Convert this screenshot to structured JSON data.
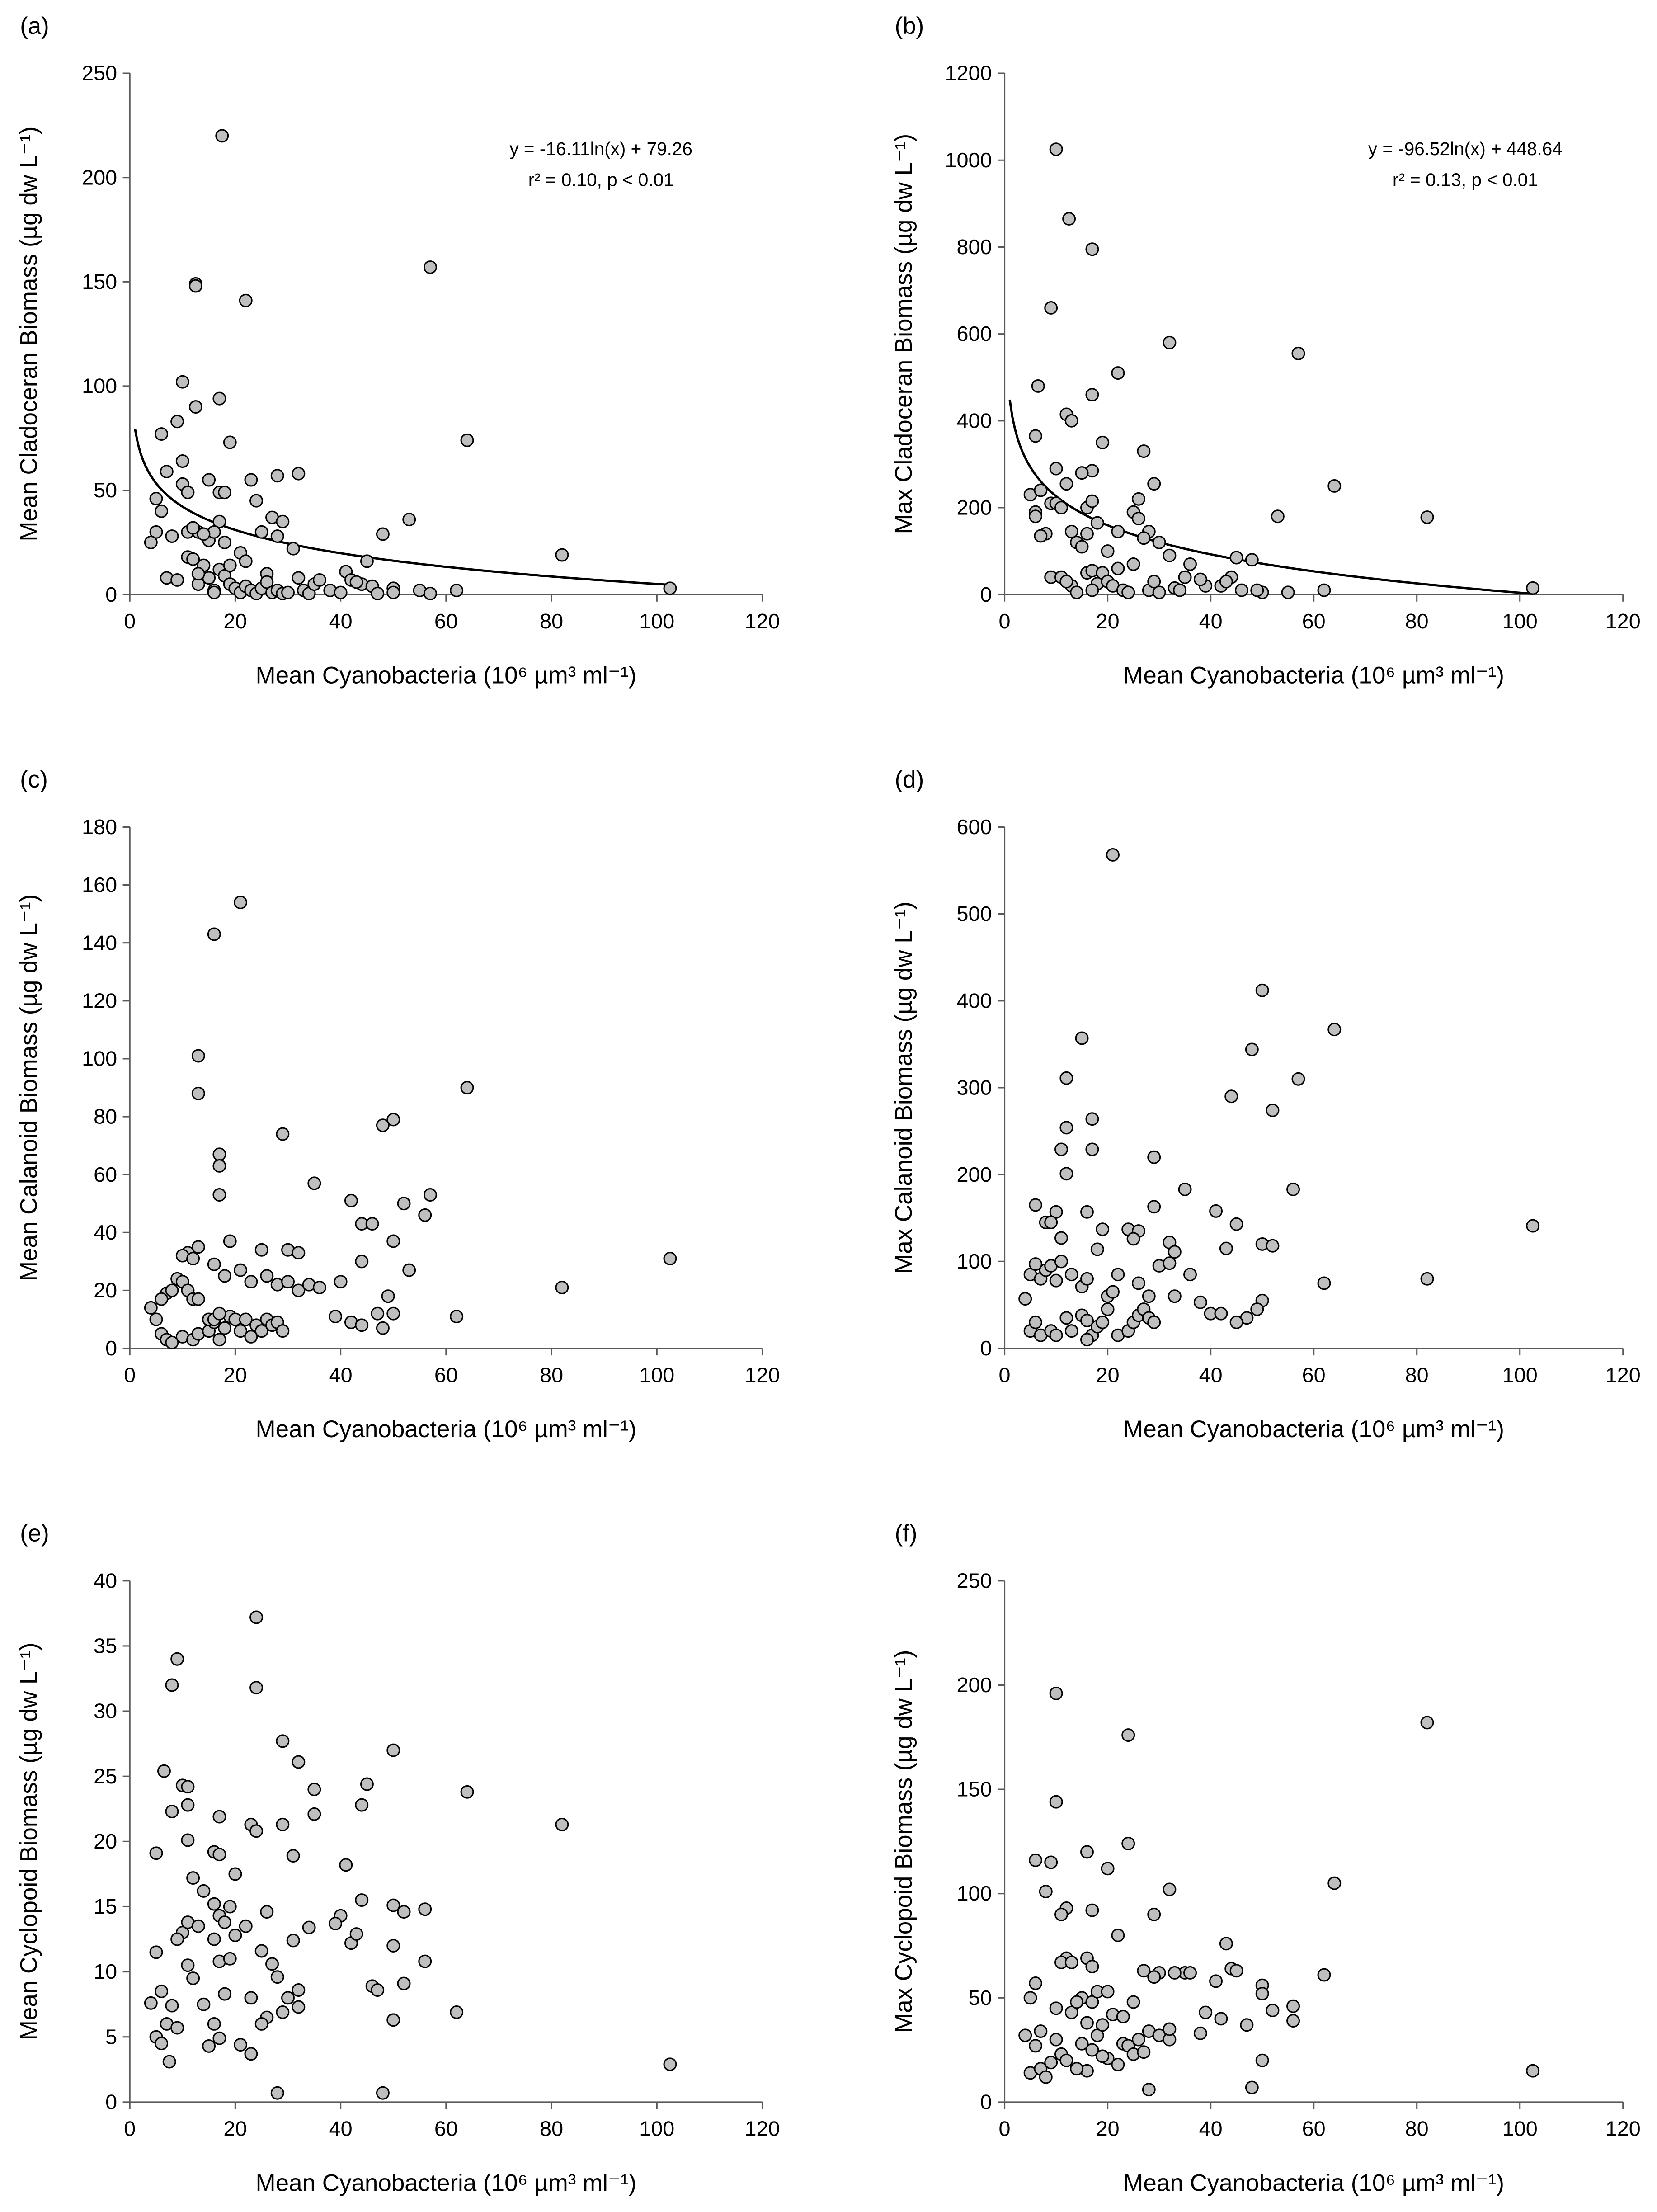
{
  "chart_data": [
    {
      "type": "scatter",
      "panel_label": "(a)",
      "xlabel": "Mean Cyanobacteria (10⁶ µm³ ml⁻¹)",
      "ylabel": "Mean Cladoceran Biomass (µg dw L⁻¹)",
      "x": [
        17.5,
        12.5,
        12.5,
        22,
        57,
        64,
        82,
        102.5,
        10,
        17,
        9,
        12.5,
        10,
        19,
        6,
        7,
        5,
        6,
        5,
        4,
        8,
        11,
        13,
        12,
        15,
        17,
        18,
        17,
        10,
        11,
        23,
        24,
        27,
        29,
        28,
        32,
        28,
        31,
        26,
        21,
        45,
        48,
        53,
        41,
        42,
        44,
        46,
        38,
        40,
        43,
        50,
        55,
        57,
        62,
        50,
        47,
        7,
        9,
        13,
        14,
        15,
        16,
        17,
        18,
        19,
        20,
        21,
        22,
        23,
        24,
        25,
        26,
        27,
        28,
        29,
        30,
        32,
        33,
        34,
        35,
        36,
        15,
        16,
        18,
        14,
        11,
        12,
        22,
        25,
        13,
        19,
        16
      ],
      "values": [
        220,
        149,
        148,
        141,
        157,
        74,
        19,
        3,
        102,
        94,
        83,
        90,
        64,
        73,
        77,
        59,
        46,
        40,
        30,
        25,
        28,
        30,
        30,
        32,
        55,
        49,
        49,
        35,
        53,
        49,
        55,
        45,
        37,
        35,
        57,
        58,
        28,
        22,
        10,
        20,
        16,
        29,
        36,
        11,
        7,
        5,
        4,
        2,
        1,
        6,
        3,
        2,
        0.5,
        2,
        1,
        0.5,
        8,
        7,
        5,
        14,
        8,
        2,
        12,
        9,
        5,
        3,
        1,
        4,
        2,
        0.5,
        3,
        6,
        1,
        2,
        0.5,
        1,
        8,
        2,
        0.5,
        5,
        7,
        26,
        30,
        25,
        29,
        18,
        17,
        16,
        30,
        10,
        14,
        1
      ],
      "color": "#bfbfbf",
      "xlim": [
        0,
        120
      ],
      "xticks": [
        0,
        20,
        40,
        60,
        80,
        100,
        120
      ],
      "ylim": [
        0,
        250
      ],
      "yticks": [
        0,
        50,
        100,
        150,
        200,
        250
      ],
      "annotations": [
        "y = -16.11ln(x) + 79.26",
        "r² = 0.10, p < 0.01"
      ],
      "trendline": {
        "slope": -16.11,
        "intercept": 79.26
      }
    },
    {
      "type": "scatter",
      "panel_label": "(b)",
      "xlabel": "Mean Cyanobacteria (10⁶ µm³ ml⁻¹)",
      "ylabel": "Max Cladoceran Biomass (µg dw L⁻¹)",
      "x": [
        10,
        12.5,
        17,
        9,
        32,
        57,
        22,
        6.5,
        17,
        12,
        13,
        6,
        19,
        27,
        10,
        17,
        15,
        64,
        29,
        12,
        5,
        7,
        9,
        10,
        11,
        6,
        6,
        16,
        17,
        25,
        26,
        22,
        18,
        53,
        82,
        8,
        7,
        13,
        14,
        15,
        16,
        26,
        28,
        27,
        30,
        32,
        25,
        20,
        35,
        36,
        44,
        45,
        48,
        42,
        39,
        46,
        50,
        55,
        62,
        102.5,
        13,
        9,
        11,
        16,
        17,
        18,
        19,
        20,
        21,
        23,
        24,
        28,
        30,
        33,
        34,
        14,
        17,
        12,
        22,
        29,
        38,
        43,
        49
      ],
      "values": [
        1025,
        865,
        795,
        660,
        580,
        555,
        510,
        480,
        460,
        415,
        400,
        365,
        350,
        330,
        290,
        285,
        280,
        250,
        255,
        255,
        230,
        240,
        210,
        210,
        200,
        190,
        180,
        200,
        215,
        190,
        175,
        145,
        165,
        180,
        178,
        140,
        135,
        145,
        120,
        110,
        140,
        220,
        145,
        130,
        120,
        90,
        70,
        100,
        40,
        70,
        40,
        85,
        80,
        20,
        20,
        10,
        5,
        5,
        10,
        15,
        20,
        40,
        40,
        50,
        55,
        25,
        50,
        30,
        20,
        10,
        5,
        10,
        5,
        15,
        10,
        5,
        10,
        30,
        60,
        30,
        35,
        30,
        10
      ],
      "color": "#bfbfbf",
      "xlim": [
        0,
        120
      ],
      "xticks": [
        0,
        20,
        40,
        60,
        80,
        100,
        120
      ],
      "ylim": [
        0,
        1200
      ],
      "yticks": [
        0,
        200,
        400,
        600,
        800,
        1000,
        1200
      ],
      "annotations": [
        "y = -96.52ln(x) + 448.64",
        "r² = 0.13, p < 0.01"
      ],
      "trendline": {
        "slope": -96.52,
        "intercept": 448.64
      }
    },
    {
      "type": "scatter",
      "panel_label": "(c)",
      "xlabel": "Mean Cyanobacteria (10⁶ µm³ ml⁻¹)",
      "ylabel": "Mean Calanoid Biomass (µg dw L⁻¹)",
      "x": [
        21,
        16,
        13,
        13,
        64,
        29,
        50,
        48,
        17,
        17,
        35,
        17,
        57,
        56,
        42,
        52,
        44,
        46,
        19,
        13,
        11,
        10,
        12,
        25,
        30,
        32,
        44,
        102.5,
        53,
        50,
        26,
        18,
        16,
        21,
        23,
        28,
        30,
        32,
        34,
        36,
        40,
        9,
        10,
        11,
        12,
        13,
        7,
        8,
        6,
        4,
        5,
        82,
        62,
        39,
        42,
        44,
        47,
        49,
        50,
        48,
        6,
        7,
        8,
        10,
        12,
        13,
        15,
        16,
        17,
        18,
        19,
        20,
        21,
        22,
        23,
        24,
        25,
        26,
        27,
        28,
        29,
        15,
        16,
        17
      ],
      "values": [
        154,
        143,
        101,
        88,
        90,
        74,
        79,
        77,
        67,
        63,
        57,
        53,
        53,
        46,
        51,
        50,
        43,
        43,
        37,
        35,
        33,
        32,
        31,
        34,
        34,
        33,
        30,
        31,
        27,
        37,
        25,
        25,
        29,
        27,
        23,
        22,
        23,
        20,
        22,
        21,
        23,
        24,
        23,
        20,
        17,
        17,
        19,
        20,
        17,
        14,
        10,
        21,
        11,
        11,
        9,
        8,
        12,
        18,
        12,
        7,
        5,
        3,
        2,
        4,
        3,
        5,
        6,
        9,
        3,
        7,
        11,
        10,
        6,
        10,
        4,
        8,
        6,
        10,
        8,
        9,
        6,
        10,
        10,
        12
      ],
      "color": "#bfbfbf",
      "xlim": [
        0,
        120
      ],
      "xticks": [
        0,
        20,
        40,
        60,
        80,
        100,
        120
      ],
      "ylim": [
        0,
        180
      ],
      "yticks": [
        0,
        20,
        40,
        60,
        80,
        100,
        120,
        140,
        160,
        180
      ]
    },
    {
      "type": "scatter",
      "panel_label": "(d)",
      "xlabel": "Mean Cyanobacteria (10⁶ µm³ ml⁻¹)",
      "ylabel": "Max Calanoid Biomass (µg dw L⁻¹)",
      "x": [
        21,
        50,
        48,
        64,
        15,
        57,
        12,
        44,
        52,
        17,
        12,
        17,
        29,
        11,
        12,
        35,
        56,
        41,
        45,
        6,
        10,
        16,
        19,
        24,
        26,
        29,
        32,
        33,
        102.5,
        25,
        11,
        18,
        8,
        9,
        5,
        6,
        7,
        8,
        9,
        10,
        11,
        13,
        15,
        16,
        20,
        21,
        22,
        26,
        28,
        30,
        32,
        33,
        36,
        38,
        43,
        50,
        52,
        62,
        82,
        50,
        49,
        47,
        45,
        40,
        42,
        4,
        5,
        6,
        7,
        9,
        10,
        12,
        13,
        15,
        16,
        17,
        18,
        19,
        20,
        22,
        24,
        25,
        26,
        27,
        28,
        29,
        16
      ],
      "values": [
        568,
        412,
        344,
        367,
        357,
        310,
        311,
        290,
        274,
        264,
        254,
        229,
        220,
        229,
        201,
        183,
        183,
        158,
        143,
        165,
        157,
        157,
        137,
        137,
        135,
        163,
        122,
        111,
        141,
        126,
        127,
        114,
        145,
        145,
        85,
        97,
        80,
        90,
        95,
        78,
        100,
        85,
        71,
        80,
        60,
        65,
        85,
        75,
        60,
        95,
        98,
        60,
        85,
        53,
        115,
        120,
        118,
        75,
        80,
        55,
        45,
        35,
        30,
        40,
        40,
        57,
        20,
        30,
        15,
        20,
        15,
        35,
        20,
        38,
        32,
        15,
        25,
        30,
        45,
        15,
        20,
        30,
        38,
        45,
        35,
        30,
        10
      ],
      "color": "#bfbfbf",
      "xlim": [
        0,
        120
      ],
      "xticks": [
        0,
        20,
        40,
        60,
        80,
        100,
        120
      ],
      "ylim": [
        0,
        600
      ],
      "yticks": [
        0,
        100,
        200,
        300,
        400,
        500,
        600
      ]
    },
    {
      "type": "scatter",
      "panel_label": "(e)",
      "xlabel": "Mean Cyanobacteria (10⁶ µm³ ml⁻¹)",
      "ylabel": "Mean Cyclopoid Biomass (µg dw L⁻¹)",
      "x": [
        24,
        9,
        8,
        24,
        29,
        50,
        6.5,
        32,
        45,
        64,
        10,
        11,
        35,
        44,
        11,
        8,
        82,
        17,
        35,
        23,
        29,
        24,
        11,
        41,
        16,
        17,
        31,
        5,
        20,
        12,
        14,
        16,
        17,
        18,
        19,
        40,
        39,
        44,
        56,
        52,
        50,
        5,
        6,
        4,
        7,
        7.5,
        5,
        6,
        8,
        9,
        10,
        9,
        11,
        12,
        11,
        13,
        14,
        15,
        16,
        16,
        17,
        18,
        19,
        20,
        21,
        22,
        23,
        23,
        25,
        26,
        26,
        27,
        28,
        28,
        29,
        30,
        31,
        32,
        32,
        34,
        42,
        43,
        46,
        47,
        48,
        50,
        50,
        52,
        56,
        62,
        102.5,
        17,
        25
      ],
      "values": [
        37.2,
        34,
        32,
        31.8,
        27.7,
        27,
        25.4,
        26.1,
        24.4,
        23.8,
        24.3,
        24.2,
        24,
        22.8,
        22.8,
        22.3,
        21.3,
        21.9,
        22.1,
        21.3,
        21.3,
        20.8,
        20.1,
        18.2,
        19.2,
        19,
        18.9,
        19.1,
        17.5,
        17.2,
        16.2,
        15.2,
        14.3,
        13.8,
        15,
        14.3,
        13.7,
        15.5,
        14.8,
        14.6,
        15.1,
        11.5,
        8.5,
        7.6,
        6,
        3.1,
        5,
        4.5,
        7.4,
        5.7,
        13,
        12.5,
        10.5,
        9.5,
        13.8,
        13.5,
        7.5,
        4.3,
        6,
        12.5,
        10.8,
        8.3,
        11,
        12.8,
        4.4,
        13.5,
        3.7,
        8,
        11.6,
        14.6,
        6.5,
        10.6,
        9.6,
        0.7,
        6.9,
        8,
        12.4,
        8.6,
        7.3,
        13.4,
        12.2,
        12.9,
        8.9,
        8.6,
        0.7,
        6.3,
        12,
        9.1,
        10.8,
        6.9,
        2.9,
        4.9,
        6
      ],
      "color": "#bfbfbf",
      "xlim": [
        0,
        120
      ],
      "xticks": [
        0,
        20,
        40,
        60,
        80,
        100,
        120
      ],
      "ylim": [
        0,
        40
      ],
      "yticks": [
        0,
        5,
        10,
        15,
        20,
        25,
        30,
        35,
        40
      ]
    },
    {
      "type": "scatter",
      "panel_label": "(f)",
      "xlabel": "Mean Cyanobacteria (10⁶ µm³ ml⁻¹)",
      "ylabel": "Max Cyclopoid Biomass (µg dw L⁻¹)",
      "x": [
        10,
        24,
        82,
        10,
        24,
        16,
        6,
        9,
        20,
        64,
        32,
        8,
        12,
        11,
        17,
        29,
        43,
        22,
        12,
        16,
        17,
        11,
        13,
        35,
        30,
        33,
        27,
        62,
        44,
        45,
        41,
        50,
        6,
        5,
        10,
        15,
        17,
        18,
        20,
        25,
        28,
        29,
        36,
        39,
        47,
        50,
        52,
        56,
        56,
        42,
        38,
        4,
        6,
        5,
        7,
        7,
        8,
        9,
        10,
        11,
        12,
        13,
        14,
        15,
        16,
        16,
        17,
        18,
        19,
        20,
        22,
        23,
        24,
        25,
        26,
        27,
        28,
        30,
        32,
        32,
        48,
        50,
        102.5,
        19,
        21,
        14,
        23
      ],
      "values": [
        196,
        176,
        182,
        144,
        124,
        120,
        116,
        115,
        112,
        105,
        102,
        101,
        93,
        90,
        92,
        90,
        76,
        80,
        69,
        69,
        65,
        67,
        67,
        62,
        62,
        62,
        63,
        61,
        64,
        63,
        58,
        56,
        57,
        50,
        45,
        50,
        48,
        53,
        53,
        48,
        34,
        60,
        62,
        43,
        37,
        52,
        44,
        46,
        39,
        40,
        33,
        32,
        27,
        14,
        16,
        34,
        12,
        19,
        30,
        23,
        20,
        43,
        48,
        28,
        15,
        38,
        25,
        32,
        37,
        21,
        18,
        28,
        27,
        23,
        30,
        24,
        6,
        32,
        30,
        35,
        7,
        20,
        15,
        22,
        42,
        16,
        41
      ],
      "color": "#bfbfbf",
      "xlim": [
        0,
        120
      ],
      "xticks": [
        0,
        20,
        40,
        60,
        80,
        100,
        120
      ],
      "ylim": [
        0,
        250
      ],
      "yticks": [
        0,
        50,
        100,
        150,
        200,
        250
      ]
    }
  ]
}
